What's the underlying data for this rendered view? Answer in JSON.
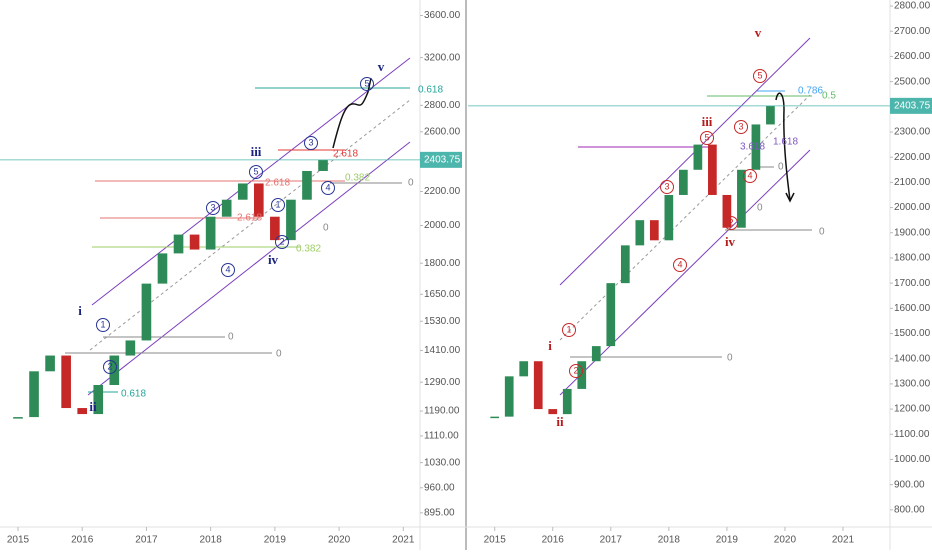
{
  "chart_data": [
    {
      "type": "candlestick",
      "log_scale": true,
      "x": [
        2015.0,
        2015.25,
        2015.5,
        2015.75,
        2016.0,
        2016.25,
        2016.5,
        2016.75,
        2017.0,
        2017.25,
        2017.5,
        2017.75,
        2018.0,
        2018.25,
        2018.5,
        2018.75,
        2019.0,
        2019.25,
        2019.5,
        2019.75
      ],
      "values": [
        1170,
        1330,
        1390,
        1200,
        1180,
        1280,
        1390,
        1450,
        1700,
        1850,
        1950,
        1870,
        2050,
        2150,
        2250,
        2050,
        1920,
        2150,
        2330,
        2403.75
      ],
      "up_color": "#2e8b57",
      "down_color": "#c62828",
      "last_price": 2403.75,
      "last_price_color": "#4db6ac",
      "xlim": [
        2014.72,
        2021.26
      ],
      "ylim": [
        853,
        3760
      ],
      "xticks": [
        2015,
        2016,
        2017,
        2018,
        2019,
        2020,
        2021
      ],
      "yticks": [
        {
          "value": 3600,
          "label": "3600.00"
        },
        {
          "value": 3200,
          "label": "3200.00"
        },
        {
          "value": 2800,
          "label": "2800.00"
        },
        {
          "value": 2600,
          "label": "2600.00"
        },
        {
          "value": 2200,
          "label": "2200.00"
        },
        {
          "value": 2000,
          "label": "2000.00"
        },
        {
          "value": 1800,
          "label": "1800.00"
        },
        {
          "value": 1650,
          "label": "1650.00"
        },
        {
          "value": 1530,
          "label": "1530.00"
        },
        {
          "value": 1410,
          "label": "1410.00"
        },
        {
          "value": 1290,
          "label": "1290.00"
        },
        {
          "value": 1190,
          "label": "1190.00"
        },
        {
          "value": 1110,
          "label": "1110.00"
        },
        {
          "value": 1030,
          "label": "1030.00"
        },
        {
          "value": 960,
          "label": "960.00"
        },
        {
          "value": 895,
          "label": "895.00"
        }
      ],
      "annotations": [
        {
          "text": "v",
          "color": "#1a237e"
        },
        {
          "text": "5",
          "color": "#283593",
          "circled": true
        },
        {
          "text": "iii",
          "color": "#1a237e"
        },
        {
          "text": "3",
          "color": "#283593",
          "circled": true
        },
        {
          "text": "5",
          "color": "#283593",
          "circled": true
        },
        {
          "text": "4",
          "color": "#283593",
          "circled": true
        },
        {
          "text": "1",
          "color": "#283593",
          "circled": true
        },
        {
          "text": "2",
          "color": "#283593",
          "circled": true
        },
        {
          "text": "3",
          "color": "#283593",
          "circled": true
        },
        {
          "text": "4",
          "color": "#283593",
          "circled": true
        },
        {
          "text": "iv",
          "color": "#1a237e"
        },
        {
          "text": "i",
          "color": "#1a237e"
        },
        {
          "text": "1",
          "color": "#283593",
          "circled": true
        },
        {
          "text": "2",
          "color": "#283593",
          "circled": true
        },
        {
          "text": "ii",
          "color": "#1a237e"
        },
        {
          "text": "0.618",
          "color": "#26a69a"
        },
        {
          "text": "2.618",
          "color": "#e53935"
        },
        {
          "text": "0.382",
          "color": "#9ccc65"
        },
        {
          "text": "0",
          "color": "#888"
        },
        {
          "text": "2.618",
          "color": "#e57373"
        },
        {
          "text": "2.618",
          "color": "#e57373"
        },
        {
          "text": "0",
          "color": "#888"
        },
        {
          "text": "0.382",
          "color": "#9ccc65"
        },
        {
          "text": "0",
          "color": "#888"
        },
        {
          "text": "0",
          "color": "#888"
        },
        {
          "text": "0.618",
          "color": "#26a69a"
        }
      ]
    },
    {
      "type": "candlestick",
      "log_scale": false,
      "x": [
        2015.0,
        2015.25,
        2015.5,
        2015.75,
        2016.0,
        2016.25,
        2016.5,
        2016.75,
        2017.0,
        2017.25,
        2017.5,
        2017.75,
        2018.0,
        2018.25,
        2018.5,
        2018.75,
        2019.0,
        2019.25,
        2019.5,
        2019.75
      ],
      "values": [
        1170,
        1330,
        1390,
        1200,
        1180,
        1280,
        1390,
        1450,
        1700,
        1850,
        1950,
        1870,
        2050,
        2150,
        2250,
        2050,
        1920,
        2150,
        2330,
        2403.75
      ],
      "up_color": "#2e8b57",
      "down_color": "#c62828",
      "last_price": 2403.75,
      "last_price_color": "#4db6ac",
      "xlim": [
        2014.54,
        2021.81
      ],
      "ylim": [
        720,
        2824
      ],
      "xticks": [
        2015,
        2016,
        2017,
        2018,
        2019,
        2020,
        2021
      ],
      "yticks": [
        {
          "value": 2800,
          "label": "2800.00"
        },
        {
          "value": 2700,
          "label": "2700.00"
        },
        {
          "value": 2600,
          "label": "2600.00"
        },
        {
          "value": 2500,
          "label": "2500.00"
        },
        {
          "value": 2300,
          "label": "2300.00"
        },
        {
          "value": 2200,
          "label": "2200.00"
        },
        {
          "value": 2100,
          "label": "2100.00"
        },
        {
          "value": 2000,
          "label": "2000.00"
        },
        {
          "value": 1900,
          "label": "1900.00"
        },
        {
          "value": 1800,
          "label": "1800.00"
        },
        {
          "value": 1700,
          "label": "1700.00"
        },
        {
          "value": 1600,
          "label": "1600.00"
        },
        {
          "value": 1500,
          "label": "1500.00"
        },
        {
          "value": 1400,
          "label": "1400.00"
        },
        {
          "value": 1300,
          "label": "1300.00"
        },
        {
          "value": 1200,
          "label": "1200.00"
        },
        {
          "value": 1100,
          "label": "1100.00"
        },
        {
          "value": 1000,
          "label": "1000.00"
        },
        {
          "value": 900,
          "label": "900.00"
        },
        {
          "value": 800,
          "label": "800.00"
        }
      ],
      "annotations": [
        {
          "text": "v",
          "color": "#b71c1c"
        },
        {
          "text": "5",
          "color": "#c62828",
          "circled": true
        },
        {
          "text": "iii",
          "color": "#b71c1c"
        },
        {
          "text": "5",
          "color": "#c62828",
          "circled": true
        },
        {
          "text": "3",
          "color": "#c62828",
          "circled": true
        },
        {
          "text": "3",
          "color": "#c62828",
          "circled": true
        },
        {
          "text": "4",
          "color": "#c62828",
          "circled": true
        },
        {
          "text": "4",
          "color": "#c62828",
          "circled": true
        },
        {
          "text": "2",
          "color": "#c62828",
          "circled": true
        },
        {
          "text": "iv",
          "color": "#b71c1c"
        },
        {
          "text": "i",
          "color": "#b71c1c"
        },
        {
          "text": "1",
          "color": "#c62828",
          "circled": true
        },
        {
          "text": "2",
          "color": "#c62828",
          "circled": true
        },
        {
          "text": "ii",
          "color": "#b71c1c"
        },
        {
          "text": "0.786",
          "color": "#42a5f5"
        },
        {
          "text": "0.5",
          "color": "#66bb6a"
        },
        {
          "text": "3.618",
          "color": "#7e57c2"
        },
        {
          "text": "1.618",
          "color": "#7e57c2"
        },
        {
          "text": "0",
          "color": "#888"
        },
        {
          "text": "0",
          "color": "#888"
        },
        {
          "text": "0",
          "color": "#888"
        },
        {
          "text": "0",
          "color": "#888"
        }
      ]
    }
  ]
}
